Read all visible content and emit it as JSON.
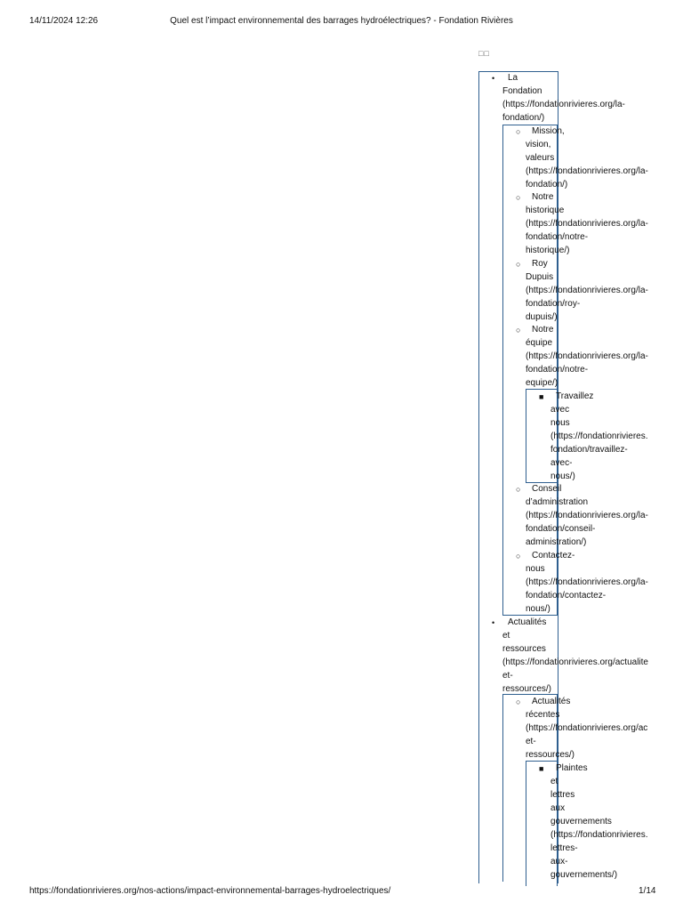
{
  "header": {
    "datetime": "14/11/2024 12:26",
    "title": "Quel est l’impact environnemental des barrages hydroélectriques? - Fondation Rivières"
  },
  "footer": {
    "url": "https://fondationrivieres.org/nos-actions/impact-environnemental-barrages-hydroelectriques/",
    "page": "1/14"
  },
  "placeholder_boxes": "□□",
  "menu": {
    "la_fondation": [
      "La",
      "Fondation",
      "(https://fondationrivieres.org/la-",
      "fondation/)"
    ],
    "mission": [
      "Mission,",
      "vision,",
      "valeurs",
      "(https://fondationrivieres.org/la-",
      "fondation/)"
    ],
    "historique": [
      "Notre",
      "historique",
      "(https://fondationrivieres.org/la-",
      "fondation/notre-",
      "historique/)"
    ],
    "roy": [
      "Roy",
      "Dupuis",
      "(https://fondationrivieres.org/la-",
      "fondation/roy-",
      "dupuis/)"
    ],
    "equipe": [
      "Notre",
      "équipe",
      "(https://fondationrivieres.org/la-",
      "fondation/notre-",
      "equipe/)"
    ],
    "travaillez": [
      "Travaillez",
      "avec",
      "nous",
      "(https://fondationrivieres.",
      "fondation/travaillez-",
      "avec-",
      "nous/)"
    ],
    "conseil": [
      "Conseil",
      "d’administration",
      "(https://fondationrivieres.org/la-",
      "fondation/conseil-",
      "administration/)"
    ],
    "contactez": [
      "Contactez-",
      "nous",
      "(https://fondationrivieres.org/la-",
      "fondation/contactez-",
      "nous/)"
    ],
    "actualites": [
      "Actualités",
      "et",
      "ressources",
      "(https://fondationrivieres.org/actualite",
      "et-",
      "ressources/)"
    ],
    "actualites_recentes": [
      "Actualités",
      "récentes",
      "(https://fondationrivieres.org/ac",
      "et-",
      "ressources/)"
    ],
    "plaintes": [
      "Plaintes",
      "et",
      "lettres",
      "aux",
      "gouvernements",
      "(https://fondationrivieres.",
      "lettres-",
      "aux-",
      "gouvernements/)"
    ]
  }
}
